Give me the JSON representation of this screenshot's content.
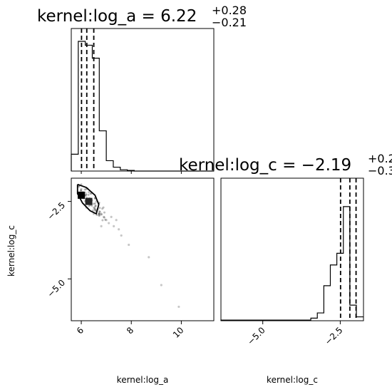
{
  "chart_data": {
    "type": "corner",
    "parameters": [
      "kernel:log_a",
      "kernel:log_c"
    ],
    "titles": {
      "log_a": {
        "prefix": "kernel:log_a = 6.22",
        "sup": "+0.28",
        "sub": "−0.21"
      },
      "log_c": {
        "prefix": "kernel:log_c = −2.19",
        "sup": "+0.2",
        "sub": "−0.3"
      }
    },
    "hist_log_a": {
      "range": [
        5.6,
        11.3
      ],
      "bin_edges": [
        5.6,
        5.88,
        6.16,
        6.44,
        6.72,
        7.0,
        7.28,
        7.56,
        7.84,
        8.12,
        8.4,
        11.3
      ],
      "counts": [
        0.13,
        1.0,
        0.97,
        0.87,
        0.31,
        0.08,
        0.03,
        0.01,
        0.005,
        0,
        0
      ],
      "quantile_lines": [
        6.01,
        6.22,
        6.5
      ]
    },
    "hist_log_c": {
      "range": [
        -6.35,
        -1.75
      ],
      "bin_edges": [
        -6.35,
        -3.45,
        -3.24,
        -3.03,
        -2.82,
        -2.61,
        -2.4,
        -2.19,
        -1.98,
        -1.75
      ],
      "counts": [
        0.005,
        0.02,
        0.06,
        0.27,
        0.43,
        0.52,
        0.88,
        0.12,
        0.03
      ],
      "quantile_lines": [
        -2.49,
        -2.19,
        -1.99
      ]
    },
    "scatter": {
      "x_range": [
        5.6,
        11.3
      ],
      "y_range": [
        -6.35,
        -1.75
      ],
      "contour_color": "#000000",
      "density_bins": [
        {
          "x": 6.0,
          "y": -2.3,
          "level": 1.0
        },
        {
          "x": 6.3,
          "y": -2.5,
          "level": 0.85
        }
      ],
      "points": [
        [
          6.1,
          -2.4
        ],
        [
          6.2,
          -2.5
        ],
        [
          6.4,
          -2.6
        ],
        [
          6.5,
          -2.7
        ],
        [
          6.6,
          -2.8
        ],
        [
          6.8,
          -2.9
        ],
        [
          6.9,
          -3.0
        ],
        [
          6.7,
          -2.9
        ],
        [
          7.0,
          -3.1
        ],
        [
          7.1,
          -3.2
        ],
        [
          7.3,
          -3.3
        ],
        [
          7.5,
          -3.4
        ],
        [
          7.6,
          -3.6
        ],
        [
          7.9,
          -3.9
        ],
        [
          8.7,
          -4.3
        ],
        [
          9.2,
          -5.2
        ],
        [
          9.9,
          -5.9
        ],
        [
          6.0,
          -2.1
        ],
        [
          5.9,
          -2.0
        ],
        [
          6.3,
          -2.2
        ],
        [
          6.6,
          -2.5
        ],
        [
          6.2,
          -2.7
        ],
        [
          6.5,
          -2.9
        ],
        [
          7.2,
          -3.0
        ],
        [
          6.8,
          -3.3
        ],
        [
          7.4,
          -3.1
        ]
      ]
    },
    "x_ticks_log_a": [
      "6",
      "8",
      "10"
    ],
    "y_ticks_log_c": [
      "−2.5",
      "−5.0"
    ],
    "x_ticks_log_c": [
      "−5.0",
      "−2.5"
    ],
    "xlabel_left": "kernel:log_a",
    "xlabel_right": "kernel:log_c",
    "ylabel_left": "kernel:log_c"
  }
}
